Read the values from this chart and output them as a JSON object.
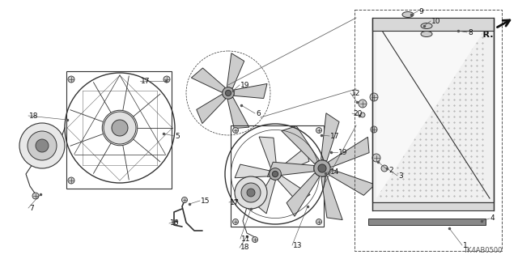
{
  "background_color": "#ffffff",
  "fig_width": 6.4,
  "fig_height": 3.2,
  "dpi": 100,
  "diagram_code_label": "TK4AB0500"
}
